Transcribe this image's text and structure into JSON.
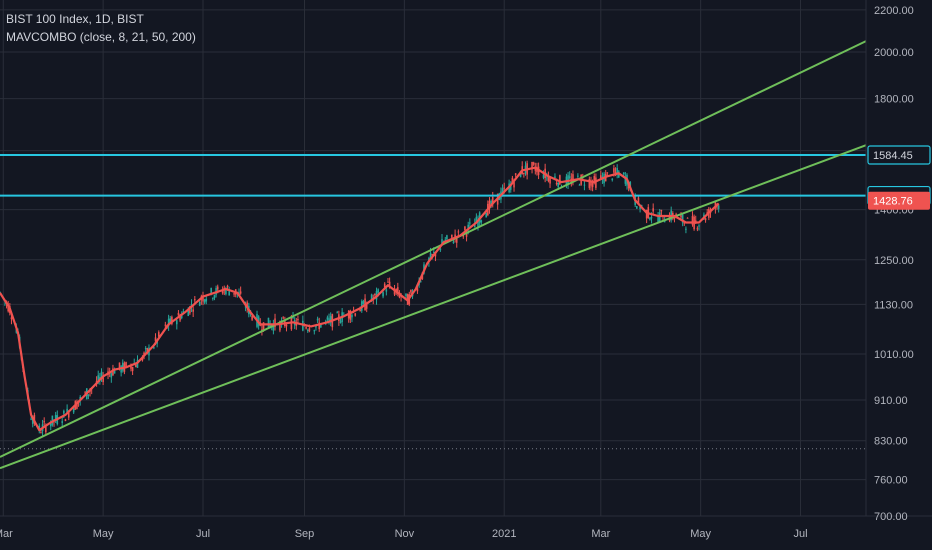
{
  "legend": {
    "title": "BIST 100 Index, 1D, BIST",
    "indicator": "MAVCOMBO (close, 8, 21, 50, 200)"
  },
  "colors": {
    "background": "#131722",
    "grid": "#2a2e39",
    "channel": "#6fbf5a",
    "hline": "#27c6e0",
    "ma": "#f0524f",
    "candle_up": "#26a69a",
    "candle_down": "#ef5350",
    "last_price_bg": "#ef5350",
    "dotted": "#787b86"
  },
  "chart_data": {
    "type": "line",
    "series_note": "",
    "y_axis": {
      "scale": "log",
      "ticks": [
        700,
        760,
        830,
        910,
        1010,
        1130,
        1250,
        1400,
        1600,
        1800,
        2000,
        2200
      ],
      "tick_labels": [
        "700.00",
        "760.00",
        "830.00",
        "910.00",
        "1010.00",
        "1130.00",
        "1250.00",
        "1400.00",
        "1600.00",
        "1800.00",
        "2000.00",
        "2200.00"
      ],
      "range": [
        700,
        2250
      ]
    },
    "x_axis": {
      "ticks": [
        "2020-03-01",
        "2020-05-01",
        "2020-07-01",
        "2020-09-01",
        "2020-11-01",
        "2021-01-01",
        "2021-03-01",
        "2021-05-01",
        "2021-07-01"
      ],
      "tick_labels": [
        "Mar",
        "May",
        "Jul",
        "Sep",
        "Nov",
        "2021",
        "Mar",
        "May",
        "Jul"
      ],
      "range": [
        "2020-02-28",
        "2021-08-10"
      ]
    },
    "series": [
      {
        "values": [
          [
            "2020-02-28",
            1160
          ],
          [
            "2020-03-05",
            1120
          ],
          [
            "2020-03-10",
            1060
          ],
          [
            "2020-03-14",
            960
          ],
          [
            "2020-03-18",
            880
          ],
          [
            "2020-03-23",
            850
          ],
          [
            "2020-03-30",
            865
          ],
          [
            "2020-04-08",
            880
          ],
          [
            "2020-04-20",
            920
          ],
          [
            "2020-05-01",
            960
          ],
          [
            "2020-05-08",
            975
          ],
          [
            "2020-05-15",
            980
          ],
          [
            "2020-05-22",
            990
          ],
          [
            "2020-06-01",
            1030
          ],
          [
            "2020-06-10",
            1080
          ],
          [
            "2020-06-20",
            1110
          ],
          [
            "2020-07-01",
            1150
          ],
          [
            "2020-07-08",
            1160
          ],
          [
            "2020-07-15",
            1170
          ],
          [
            "2020-07-22",
            1160
          ],
          [
            "2020-07-30",
            1110
          ],
          [
            "2020-08-05",
            1080
          ],
          [
            "2020-08-15",
            1080
          ],
          [
            "2020-08-25",
            1085
          ],
          [
            "2020-09-05",
            1075
          ],
          [
            "2020-09-15",
            1085
          ],
          [
            "2020-09-25",
            1100
          ],
          [
            "2020-10-05",
            1120
          ],
          [
            "2020-10-15",
            1150
          ],
          [
            "2020-10-22",
            1180
          ],
          [
            "2020-10-28",
            1160
          ],
          [
            "2020-11-03",
            1140
          ],
          [
            "2020-11-08",
            1170
          ],
          [
            "2020-11-15",
            1240
          ],
          [
            "2020-11-25",
            1300
          ],
          [
            "2020-12-05",
            1320
          ],
          [
            "2020-12-15",
            1360
          ],
          [
            "2020-12-25",
            1420
          ],
          [
            "2021-01-05",
            1480
          ],
          [
            "2021-01-12",
            1530
          ],
          [
            "2021-01-20",
            1540
          ],
          [
            "2021-01-28",
            1510
          ],
          [
            "2021-02-05",
            1490
          ],
          [
            "2021-02-15",
            1500
          ],
          [
            "2021-02-25",
            1490
          ],
          [
            "2021-03-05",
            1510
          ],
          [
            "2021-03-12",
            1520
          ],
          [
            "2021-03-17",
            1500
          ],
          [
            "2021-03-22",
            1430
          ],
          [
            "2021-03-29",
            1390
          ],
          [
            "2021-04-05",
            1380
          ],
          [
            "2021-04-15",
            1380
          ],
          [
            "2021-04-22",
            1360
          ],
          [
            "2021-04-30",
            1360
          ],
          [
            "2021-05-06",
            1390
          ],
          [
            "2021-05-12",
            1420
          ]
        ]
      }
    ],
    "channel_lines": [
      {
        "points": [
          [
            "2020-02-28",
            800
          ],
          [
            "2021-08-10",
            2050
          ]
        ]
      },
      {
        "points": [
          [
            "2020-02-28",
            780
          ],
          [
            "2021-08-10",
            1620
          ]
        ]
      }
    ],
    "horizontal_lines": [
      1584.45,
      1445.43
    ],
    "dotted_line": 815,
    "price_labels": [
      {
        "value": 1584.45,
        "text": "1584.45",
        "style": "hline"
      },
      {
        "value": 1445.43,
        "text": "1445.43",
        "style": "hline"
      },
      {
        "value": 1428.76,
        "text": "1428.76",
        "style": "last"
      }
    ]
  }
}
